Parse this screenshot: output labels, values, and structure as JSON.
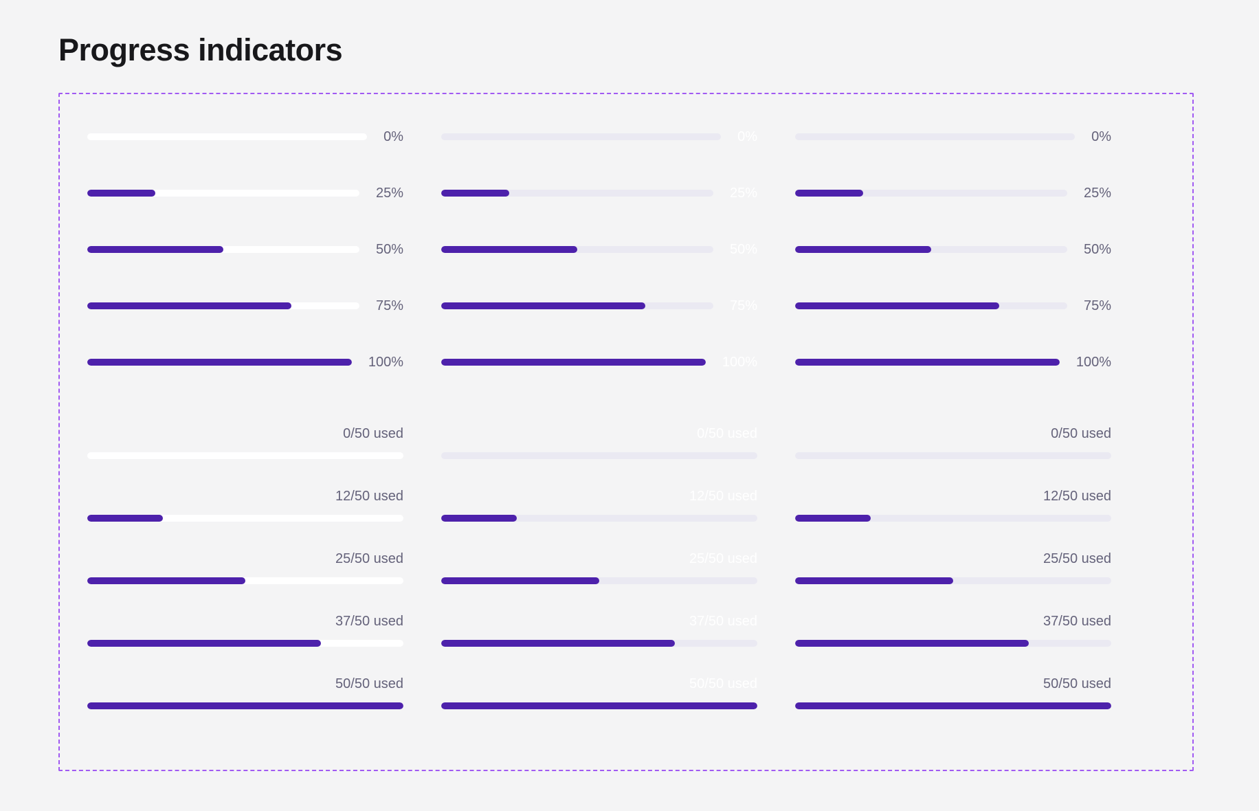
{
  "page": {
    "title": "Progress indicators"
  },
  "colors": {
    "page_bg": "#F4F4F5",
    "heading": "#18181B",
    "dashed_border": "#A15AF2",
    "fill_purple": "#4D21AB",
    "track_white": "#FFFFFF",
    "track_lavender": "#EAE9F2",
    "label_dark": "#64627A",
    "label_light": "#FFFFFF"
  },
  "percent_rows": [
    {
      "label": "0%",
      "value": 0
    },
    {
      "label": "25%",
      "value": 25
    },
    {
      "label": "50%",
      "value": 50
    },
    {
      "label": "75%",
      "value": 75
    },
    {
      "label": "100%",
      "value": 100
    }
  ],
  "used_rows": [
    {
      "label": "0/50 used",
      "value": 0
    },
    {
      "label": "12/50 used",
      "value": 24
    },
    {
      "label": "25/50 used",
      "value": 50
    },
    {
      "label": "37/50 used",
      "value": 74
    },
    {
      "label": "50/50 used",
      "value": 100
    }
  ],
  "columns": [
    {
      "id": "white-track-dark-label",
      "track": "white",
      "label_tone": "dark"
    },
    {
      "id": "lavender-track-light-label",
      "track": "lavender",
      "label_tone": "light"
    },
    {
      "id": "lavender-track-dark-label",
      "track": "lavender",
      "label_tone": "dark"
    }
  ]
}
